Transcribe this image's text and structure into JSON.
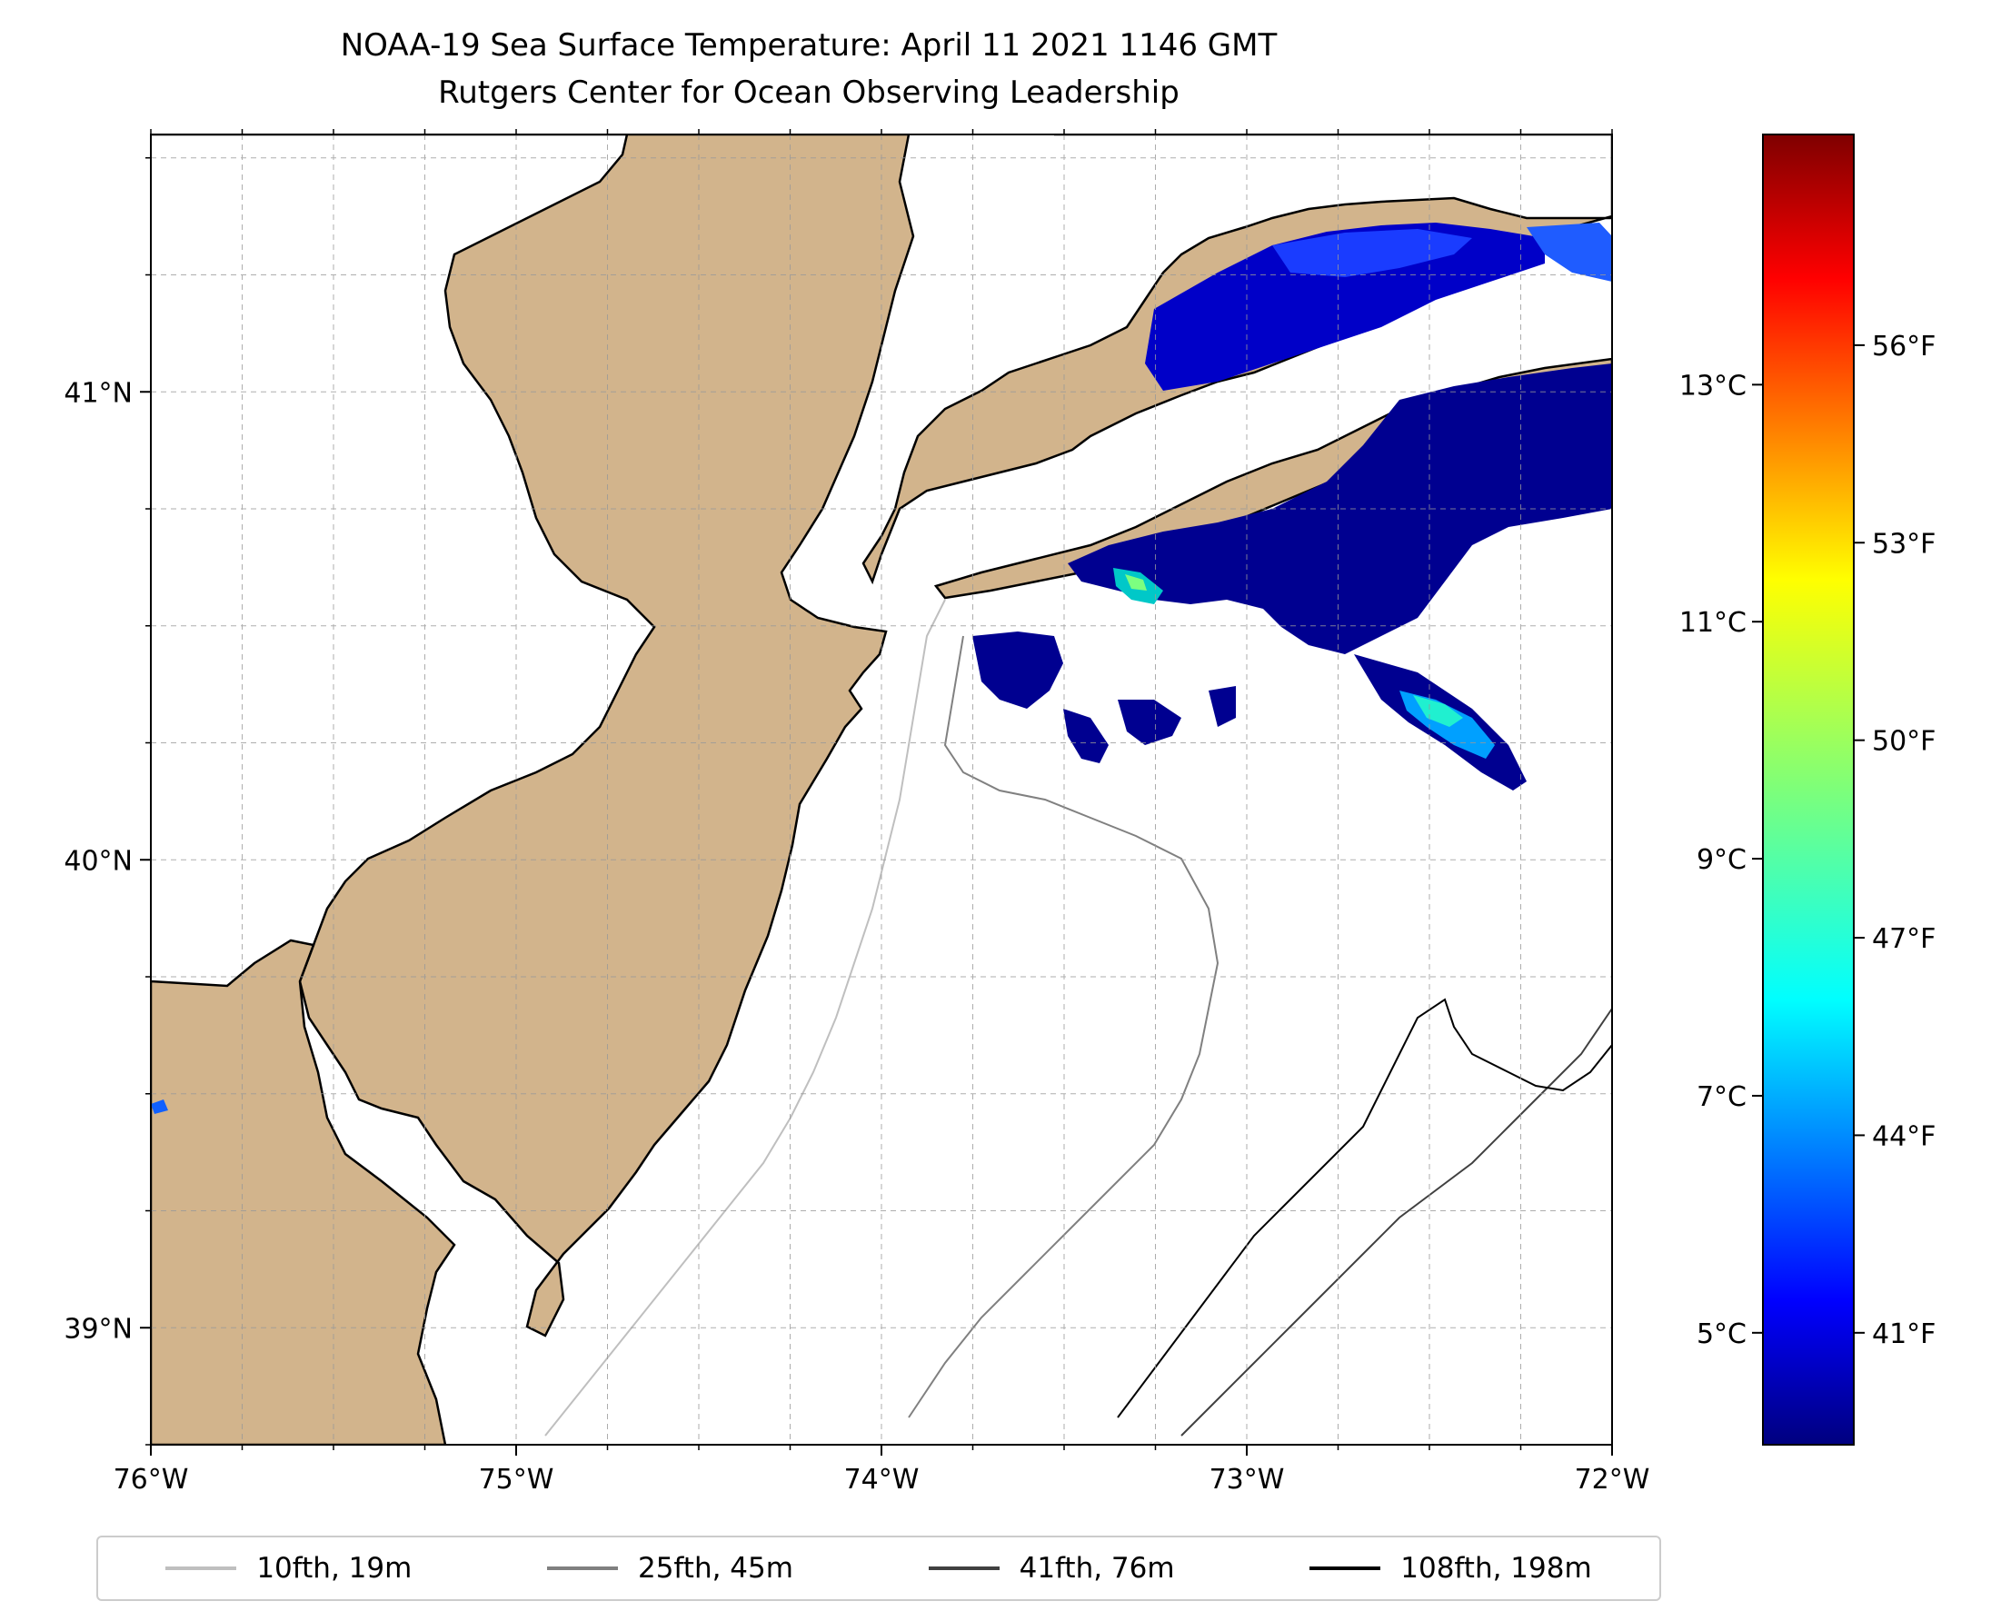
{
  "title": "NOAA-19 Sea Surface Temperature: April 11 2021 1146 GMT",
  "subtitle": "Rutgers Center for Ocean Observing Leadership",
  "map": {
    "lon_range": [
      -76,
      -72
    ],
    "lat_range": [
      38.75,
      41.55
    ],
    "lon_ticks": [
      {
        "value": -76,
        "label": "76°W"
      },
      {
        "value": -75,
        "label": "75°W"
      },
      {
        "value": -74,
        "label": "74°W"
      },
      {
        "value": -73,
        "label": "73°W"
      },
      {
        "value": -72,
        "label": "72°W"
      }
    ],
    "lat_ticks": [
      {
        "value": 41,
        "label": "41°N"
      },
      {
        "value": 40,
        "label": "40°N"
      },
      {
        "value": 39,
        "label": "39°N"
      }
    ],
    "grid": true,
    "land_color": "#d2b48c",
    "water_color": "#ffffff"
  },
  "colorbar": {
    "colormap": "jet",
    "celsius_ticks": [
      {
        "value": 5,
        "label": "5°C"
      },
      {
        "value": 7,
        "label": "7°C"
      },
      {
        "value": 9,
        "label": "9°C"
      },
      {
        "value": 11,
        "label": "11°C"
      },
      {
        "value": 13,
        "label": "13°C"
      }
    ],
    "fahrenheit_ticks": [
      {
        "value": 41,
        "label": "41°F"
      },
      {
        "value": 44,
        "label": "44°F"
      },
      {
        "value": 47,
        "label": "47°F"
      },
      {
        "value": 50,
        "label": "50°F"
      },
      {
        "value": 53,
        "label": "53°F"
      },
      {
        "value": 56,
        "label": "56°F"
      }
    ]
  },
  "legend": {
    "items": [
      {
        "label": "10fth, 19m",
        "color": "#bfbfbf"
      },
      {
        "label": "25fth, 45m",
        "color": "#808080"
      },
      {
        "label": "41fth, 76m",
        "color": "#404040"
      },
      {
        "label": "108fth, 198m",
        "color": "#000000"
      }
    ]
  }
}
